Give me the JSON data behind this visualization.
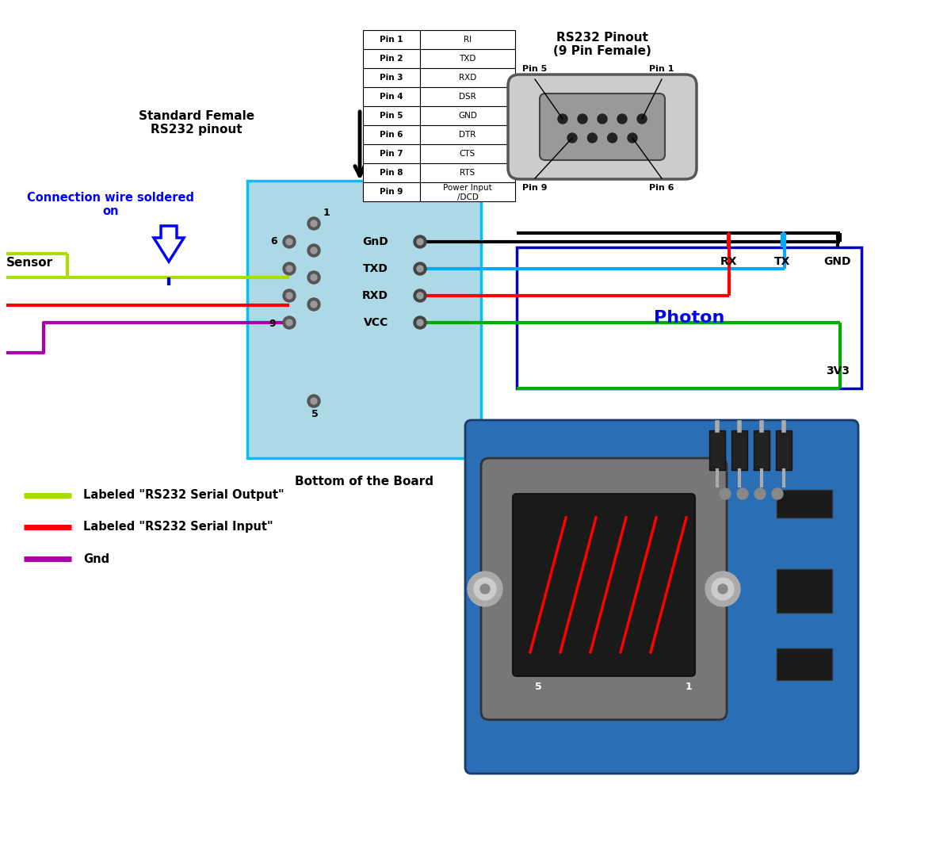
{
  "bg_color": "#ffffff",
  "light_blue": "#ADD8E6",
  "table_data": [
    [
      "Pin 1",
      "RI"
    ],
    [
      "Pin 2",
      "TXD"
    ],
    [
      "Pin 3",
      "RXD"
    ],
    [
      "Pin 4",
      "DSR"
    ],
    [
      "Pin 5",
      "GND"
    ],
    [
      "Pin 6",
      "DTR"
    ],
    [
      "Pin 7",
      "CTS"
    ],
    [
      "Pin 8",
      "RTS"
    ],
    [
      "Pin 9",
      "Power Input\n/DCD"
    ]
  ],
  "rs232_title": "RS232 Pinout\n(9 Pin Female)",
  "connector_label": "Standard Female\nRS232 pinout",
  "bottom_label": "Bottom of the Board",
  "connection_wire_label": "Connection wire soldered\non",
  "sensor_label": "Sensor",
  "photon_label": "Photon",
  "photon_pin_3v3": "3V3",
  "connector_signals": [
    "GnD",
    "TXD",
    "RXD",
    "VCC"
  ],
  "legend": [
    {
      "color": "#AADD00",
      "label": "Labeled \"RS232 Serial Output\""
    },
    {
      "color": "#FF0000",
      "label": "Labeled \"RS232 Serial Input\""
    },
    {
      "color": "#AA00AA",
      "label": "Gnd"
    }
  ],
  "c_black": "#000000",
  "c_blue_wire": "#00AAFF",
  "c_red": "#FF0000",
  "c_green": "#00AA00",
  "c_ygreen": "#AADD00",
  "c_purple": "#AA00AA",
  "c_dark_blue": "#0000CC"
}
